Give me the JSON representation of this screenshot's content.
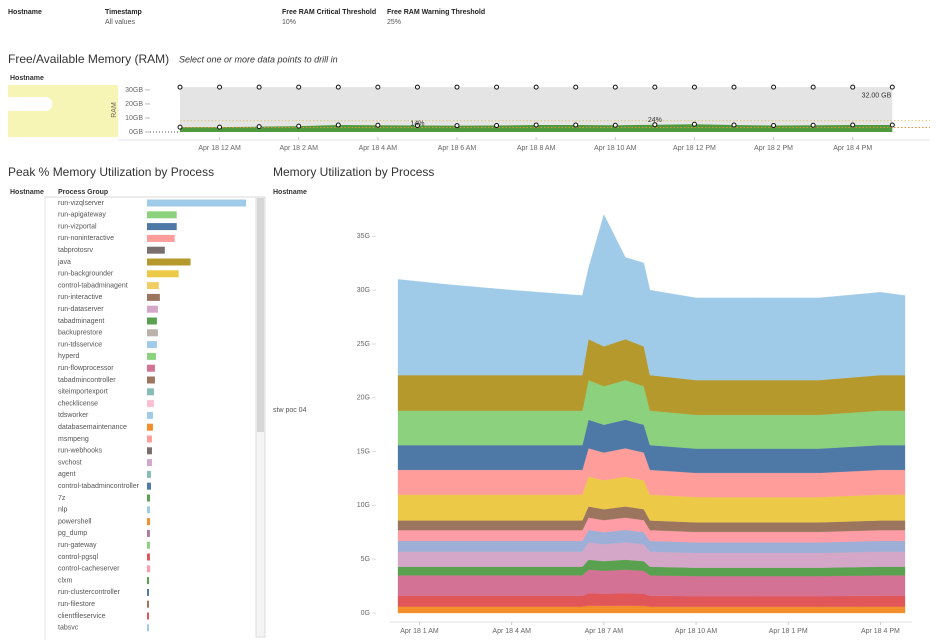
{
  "filters": [
    {
      "label": "Hostname"
    },
    {
      "label": "Timestamp",
      "value": "All values"
    },
    {
      "label": "Free RAM Critical Threshold",
      "value": "10%"
    },
    {
      "label": "Free RAM Warning Threshold",
      "value": "25%"
    }
  ],
  "chart_data": [
    {
      "type": "area",
      "title": "Free/Available Memory (RAM)",
      "subtitle": "Select one or more data points to drill in",
      "row_header": "Hostname",
      "ylabel": "RAM",
      "x": [
        -1,
        0,
        1,
        2,
        3,
        4,
        5,
        6,
        7,
        8,
        9,
        10,
        11,
        12,
        13,
        14,
        15,
        16,
        17
      ],
      "xlim": [
        -1,
        17.7
      ],
      "xticks": [
        {
          "value": 0,
          "label": "Apr 18 12 AM"
        },
        {
          "value": 2,
          "label": "Apr 18 2 AM"
        },
        {
          "value": 4,
          "label": "Apr 18 4 AM"
        },
        {
          "value": 6,
          "label": "Apr 18 6 AM"
        },
        {
          "value": 8,
          "label": "Apr 18 8 AM"
        },
        {
          "value": 10,
          "label": "Apr 18 10 AM"
        },
        {
          "value": 12,
          "label": "Apr 18 12 PM"
        },
        {
          "value": 14,
          "label": "Apr 18 2 PM"
        },
        {
          "value": 16,
          "label": "Apr 18 4 PM"
        }
      ],
      "ylim": [
        0,
        33.5
      ],
      "yticks": [
        {
          "value": 30,
          "label": "30GB"
        },
        {
          "value": 20,
          "label": "20GB"
        },
        {
          "value": 10,
          "label": "10GB"
        },
        {
          "value": 0,
          "label": "0GB"
        }
      ],
      "series": [
        {
          "color": "#e4e4e4",
          "values": [
            32,
            32,
            32,
            32,
            32,
            32,
            32,
            32,
            32,
            32,
            32,
            32,
            32,
            32,
            32,
            32,
            32,
            32,
            32
          ]
        },
        {
          "color": "#4f9a3c",
          "values": [
            3.5,
            3.5,
            3.8,
            4.2,
            5.0,
            4.8,
            4.6,
            4.5,
            4.6,
            5.0,
            5.0,
            4.8,
            5.2,
            5.5,
            5.0,
            4.6,
            4.8,
            5.0,
            5.0
          ]
        }
      ],
      "reference_lines": [
        {
          "value": 3.2,
          "color": "#e8913a"
        },
        {
          "value": 8,
          "color": "#d8c86a"
        }
      ],
      "annotations": [
        {
          "text": "32.00 GB",
          "x": 16.6,
          "y": 26
        },
        {
          "text": "14%",
          "x": 5,
          "y": 6
        },
        {
          "text": "24%",
          "x": 11,
          "y": 8.5
        }
      ]
    },
    {
      "type": "hbar",
      "title": "Peak % Memory Utilization by Process",
      "headers": [
        "Hostname",
        "Process Group"
      ],
      "xlim": [
        0,
        52
      ],
      "categories": [
        "run-vizqlserver",
        "run-apigateway",
        "run-vizportal",
        "run-noninteractive",
        "tabprotosrv",
        "java",
        "run-backgrounder",
        "control-tabadminagent",
        "run-interactive",
        "run-dataserver",
        "tabadminagent",
        "backuprestore",
        "run-tdsservice",
        "hyperd",
        "run-flowprocessor",
        "tabadmincontroller",
        "siteimportexport",
        "checklicense",
        "tdsworker",
        "databasemaintenance",
        "msmpeng",
        "run-webhooks",
        "svchost",
        "agent",
        "control-tabadmincontroller",
        "7z",
        "nlp",
        "powershell",
        "pg_dump",
        "run-gateway",
        "control-pgsql",
        "control-cacheserver",
        "clxm",
        "run-clustercontroller",
        "run-filestore",
        "clientfileservice",
        "tabsvc"
      ],
      "values": [
        50,
        15,
        15,
        14,
        9,
        22,
        16,
        6,
        6.5,
        5.5,
        5,
        5.5,
        5,
        4.5,
        4,
        4,
        3.5,
        3.5,
        3,
        3,
        2.5,
        2.5,
        2.5,
        2,
        2,
        1.5,
        1.5,
        1.5,
        1.5,
        1.5,
        1.5,
        1.5,
        1,
        1,
        1,
        1,
        1
      ],
      "colors": [
        "#a0cbe8",
        "#8cd17d",
        "#4e79a7",
        "#ff9d9a",
        "#79706e",
        "#b6992d",
        "#edc948",
        "#f1ce63",
        "#9c755f",
        "#d4a6c8",
        "#59a14f",
        "#bab0ac",
        "#a0cbe8",
        "#8cd17d",
        "#d37295",
        "#9d7660",
        "#86bcb6",
        "#fabfd2",
        "#a0cbe8",
        "#f28e2b",
        "#ff9d9a",
        "#79706e",
        "#d4a6c8",
        "#86bcb6",
        "#4e79a7",
        "#59a14f",
        "#a0cbe8",
        "#f28e2b",
        "#b07aa1",
        "#8cd17d",
        "#e15759",
        "#ff9da7",
        "#59a14f",
        "#4e79a7",
        "#9c755f",
        "#e15759",
        "#a0cbe8"
      ]
    },
    {
      "type": "stacked_area",
      "title": "Memory Utilization by Process",
      "header": "Hostname",
      "row_label": "stw poc 04",
      "x": [
        0.3,
        2,
        4,
        6.3,
        6.5,
        7,
        7.7,
        8.3,
        8.5,
        10,
        12,
        14,
        16,
        16.8
      ],
      "xlim": [
        0.3,
        16.8
      ],
      "xticks": [
        {
          "value": 1,
          "label": "Apr 18 1 AM"
        },
        {
          "value": 4,
          "label": "Apr 18 4 AM"
        },
        {
          "value": 7,
          "label": "Apr 18 7 AM"
        },
        {
          "value": 10,
          "label": "Apr 18 10 AM"
        },
        {
          "value": 13,
          "label": "Apr 18 1 PM"
        },
        {
          "value": 16,
          "label": "Apr 18 4 PM"
        }
      ],
      "ylim": [
        0,
        36.7
      ],
      "yticks": [
        {
          "value": 0,
          "label": "0G"
        },
        {
          "value": 5,
          "label": "5G"
        },
        {
          "value": 10,
          "label": "10G"
        },
        {
          "value": 15,
          "label": "15G"
        },
        {
          "value": 20,
          "label": "20G"
        },
        {
          "value": 25,
          "label": "25G"
        },
        {
          "value": 30,
          "label": "30G"
        },
        {
          "value": 35,
          "label": "35G"
        }
      ],
      "series": [
        {
          "color": "#f28e2b",
          "values": [
            0.6,
            0.6,
            0.6,
            0.6,
            0.69,
            0.67,
            0.69,
            0.67,
            0.6,
            0.59,
            0.59,
            0.59,
            0.6,
            0.6
          ]
        },
        {
          "color": "#e15759",
          "values": [
            1.0,
            1.0,
            1.0,
            1.0,
            1.15,
            1.12,
            1.15,
            1.12,
            1.0,
            0.98,
            0.98,
            0.98,
            1.0,
            1.0
          ]
        },
        {
          "color": "#d37295",
          "values": [
            1.9,
            1.9,
            1.9,
            1.9,
            2.19,
            2.13,
            2.19,
            2.13,
            1.9,
            1.86,
            1.86,
            1.86,
            1.9,
            1.9
          ]
        },
        {
          "color": "#59a14f",
          "values": [
            0.8,
            0.8,
            0.8,
            0.8,
            0.92,
            0.9,
            0.92,
            0.9,
            0.8,
            0.78,
            0.78,
            0.78,
            0.8,
            0.8
          ]
        },
        {
          "color": "#d4a6c8",
          "values": [
            1.4,
            1.4,
            1.4,
            1.4,
            1.61,
            1.57,
            1.61,
            1.57,
            1.4,
            1.37,
            1.37,
            1.37,
            1.4,
            1.4
          ]
        },
        {
          "color": "#9dafd6",
          "values": [
            1.0,
            1.0,
            1.0,
            1.0,
            1.15,
            1.12,
            1.15,
            1.12,
            1.0,
            0.98,
            0.98,
            0.98,
            1.0,
            1.0
          ]
        },
        {
          "color": "#ff9da7",
          "values": [
            1.0,
            1.0,
            1.0,
            1.0,
            1.15,
            1.12,
            1.15,
            1.12,
            1.0,
            0.98,
            0.98,
            0.98,
            1.0,
            1.0
          ]
        },
        {
          "color": "#9c755f",
          "values": [
            0.9,
            0.9,
            0.9,
            0.9,
            1.04,
            1.01,
            1.04,
            1.01,
            0.9,
            0.88,
            0.88,
            0.88,
            0.9,
            0.9
          ]
        },
        {
          "color": "#edc948",
          "values": [
            2.4,
            2.4,
            2.4,
            2.4,
            2.76,
            2.69,
            2.76,
            2.69,
            2.4,
            2.35,
            2.35,
            2.35,
            2.4,
            2.4
          ]
        },
        {
          "color": "#ff9d9a",
          "values": [
            2.3,
            2.3,
            2.3,
            2.3,
            2.65,
            2.58,
            2.65,
            2.58,
            2.3,
            2.25,
            2.25,
            2.25,
            2.3,
            2.3
          ]
        },
        {
          "color": "#4e79a7",
          "values": [
            2.3,
            2.3,
            2.3,
            2.3,
            2.65,
            2.58,
            2.65,
            2.58,
            2.3,
            2.25,
            2.25,
            2.25,
            2.3,
            2.3
          ]
        },
        {
          "color": "#8cd17d",
          "values": [
            3.2,
            3.2,
            3.2,
            3.2,
            3.68,
            3.58,
            3.68,
            3.58,
            3.2,
            3.14,
            3.14,
            3.14,
            3.2,
            3.2
          ]
        },
        {
          "color": "#b6992d",
          "values": [
            3.3,
            3.3,
            3.3,
            3.3,
            3.8,
            3.7,
            3.8,
            3.7,
            3.3,
            3.23,
            3.23,
            3.23,
            3.3,
            3.3
          ]
        },
        {
          "color": "#a0cbe8",
          "values": [
            8.9,
            8.4,
            7.9,
            7.4,
            6.6,
            12.25,
            7.6,
            7.75,
            7.9,
            7.64,
            7.64,
            7.64,
            7.7,
            7.4
          ]
        }
      ]
    }
  ]
}
